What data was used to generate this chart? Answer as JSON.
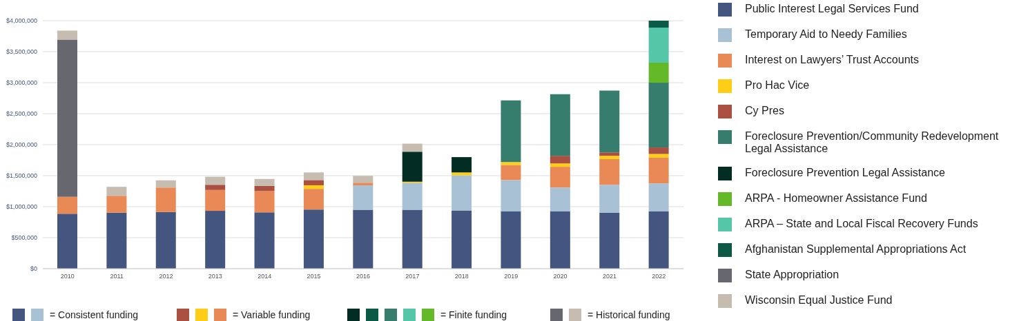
{
  "chart_data": {
    "type": "bar",
    "stacked": true,
    "categories": [
      "2010",
      "2011",
      "2012",
      "2013",
      "2014",
      "2015",
      "2016",
      "2017",
      "2018",
      "2019",
      "2020",
      "2021",
      "2022"
    ],
    "series": [
      {
        "name": "Public Interest Legal Services Fund",
        "color": "#44557f",
        "values": [
          885000,
          903000,
          914000,
          932000,
          907000,
          954000,
          950000,
          950000,
          939000,
          921000,
          921000,
          903000,
          921000
        ]
      },
      {
        "name": "Temporary Aid to Needy Families",
        "color": "#a9c1d5",
        "values": [
          null,
          null,
          null,
          null,
          null,
          null,
          395000,
          435000,
          566000,
          508000,
          388000,
          450000,
          453000
        ]
      },
      {
        "name": "Interest on Lawyers’ Trust Accounts",
        "color": "#e98a56",
        "values": [
          272000,
          272000,
          395000,
          337000,
          344000,
          333000,
          40000,
          null,
          null,
          243000,
          334000,
          413000,
          417000
        ]
      },
      {
        "name": "Pro Hac Vice",
        "color": "#fecd15",
        "values": [
          null,
          null,
          null,
          null,
          null,
          58000,
          null,
          18000,
          47000,
          47000,
          54000,
          54000,
          59000
        ]
      },
      {
        "name": "Cy Pres",
        "color": "#aa5040",
        "values": [
          null,
          null,
          null,
          84000,
          84000,
          84000,
          null,
          null,
          null,
          null,
          123000,
          55000,
          105000
        ]
      },
      {
        "name": "Foreclosure Prevention/Community Redevelopment Legal Assistance",
        "color": "#367d6d",
        "values": [
          null,
          null,
          null,
          null,
          null,
          null,
          null,
          null,
          null,
          994000,
          994000,
          997000,
          1044000
        ]
      },
      {
        "name": "Foreclosure Prevention Legal Assistance",
        "color": "#032c22",
        "values": [
          null,
          null,
          null,
          null,
          null,
          null,
          null,
          483000,
          247000,
          null,
          null,
          null,
          null
        ]
      },
      {
        "name": "ARPA - Homeowner Assistance Fund",
        "color": "#63b927",
        "values": [
          null,
          null,
          null,
          null,
          null,
          null,
          null,
          null,
          null,
          null,
          null,
          null,
          323000
        ]
      },
      {
        "name": "ARPA – State and Local Fiscal Recovery Funds",
        "color": "#55c6a8",
        "values": [
          null,
          null,
          null,
          null,
          null,
          null,
          null,
          null,
          null,
          null,
          null,
          null,
          566000
        ]
      },
      {
        "name": "Afghanistan Supplemental Appropriations Act",
        "color": "#0c5a46",
        "values": [
          null,
          null,
          null,
          null,
          null,
          null,
          null,
          null,
          null,
          null,
          null,
          null,
          112000
        ]
      },
      {
        "name": "State Appropriation",
        "color": "#67676f",
        "values": [
          2538000,
          null,
          null,
          null,
          null,
          null,
          null,
          null,
          null,
          null,
          null,
          null,
          null
        ]
      },
      {
        "name": "Wisconsin Equal Justice Fund",
        "color": "#c6bcb0",
        "values": [
          145000,
          145000,
          116000,
          130000,
          112000,
          123000,
          113000,
          130000,
          null,
          null,
          null,
          null,
          null
        ]
      }
    ],
    "ylim": [
      0,
      4000000
    ],
    "yticks": [
      {
        "value": 0,
        "label": "$0"
      },
      {
        "value": 500000,
        "label": "$500,000"
      },
      {
        "value": 1000000,
        "label": "$1,000,000"
      },
      {
        "value": 1500000,
        "label": "$1,500,000"
      },
      {
        "value": 2000000,
        "label": "$2,000,000"
      },
      {
        "value": 2500000,
        "label": "$2,500,000"
      },
      {
        "value": 3000000,
        "label": "$3,000,000"
      },
      {
        "value": 3500000,
        "label": "$3,500,000"
      },
      {
        "value": 4000000,
        "label": "$4,000,000"
      }
    ],
    "grid": "y",
    "legend": "right",
    "annotations": [
      "= Consistent funding",
      "= Variable funding",
      "= Finite funding",
      "= Historical funding"
    ]
  }
}
